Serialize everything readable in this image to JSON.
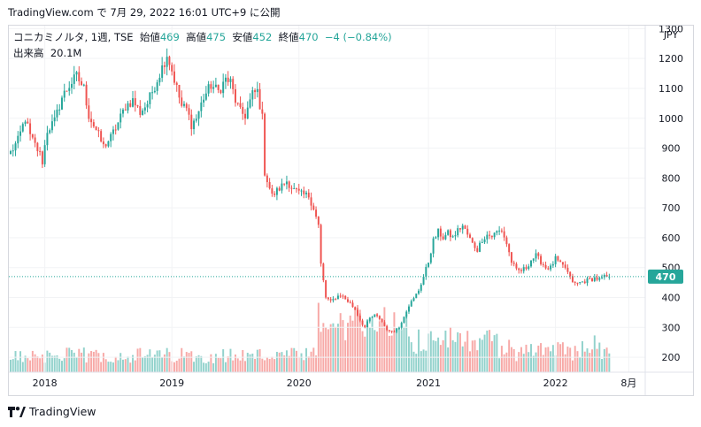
{
  "header": {
    "text": "TradingView.com で 7月 29, 2022 16:01 UTC+9 に公開"
  },
  "legend": {
    "symbol": "コニカミノルタ, 1週, TSE",
    "open_label": "始値",
    "open": "469",
    "high_label": "高値",
    "high": "475",
    "low_label": "安値",
    "low": "452",
    "close_label": "終値",
    "close": "470",
    "change": "−4 (−0.84%)",
    "volume_label": "出来高",
    "volume": "20.1M"
  },
  "footer": {
    "brand": "TradingView"
  },
  "colors": {
    "up": "#26a69a",
    "down": "#ef5350",
    "up_vol": "#92d2cc",
    "down_vol": "#f7a9a7",
    "price_line": "#26a69a"
  },
  "chart_data": {
    "type": "candlestick",
    "currency_label": "JPY",
    "y_ticks": [
      200,
      300,
      400,
      500,
      600,
      700,
      800,
      900,
      1000,
      1100,
      1200,
      1300
    ],
    "ylim": [
      150,
      1310
    ],
    "x_ticks": [
      {
        "label": "2018",
        "week": 14
      },
      {
        "label": "2019",
        "week": 66
      },
      {
        "label": "2020",
        "week": 118
      },
      {
        "label": "2021",
        "week": 171
      },
      {
        "label": "2022",
        "week": 223
      },
      {
        "label": "8月",
        "week": 253
      }
    ],
    "total_weeks": 259,
    "last_price": 470,
    "last_price_label": "470",
    "price_anchors": [
      [
        0,
        885
      ],
      [
        3,
        925
      ],
      [
        6,
        1000
      ],
      [
        8,
        940
      ],
      [
        10,
        910
      ],
      [
        12,
        880
      ],
      [
        13,
        855
      ],
      [
        15,
        960
      ],
      [
        18,
        990
      ],
      [
        21,
        1070
      ],
      [
        24,
        1110
      ],
      [
        27,
        1140
      ],
      [
        30,
        1100
      ],
      [
        32,
        1010
      ],
      [
        35,
        960
      ],
      [
        38,
        905
      ],
      [
        41,
        935
      ],
      [
        44,
        985
      ],
      [
        47,
        1040
      ],
      [
        50,
        1060
      ],
      [
        53,
        1020
      ],
      [
        56,
        1050
      ],
      [
        59,
        1110
      ],
      [
        62,
        1170
      ],
      [
        64,
        1215
      ],
      [
        66,
        1160
      ],
      [
        68,
        1100
      ],
      [
        70,
        1040
      ],
      [
        72,
        1030
      ],
      [
        74,
        980
      ],
      [
        76,
        1000
      ],
      [
        79,
        1070
      ],
      [
        82,
        1110
      ],
      [
        85,
        1090
      ],
      [
        88,
        1130
      ],
      [
        90,
        1120
      ],
      [
        92,
        1060
      ],
      [
        94,
        1020
      ],
      [
        96,
        1010
      ],
      [
        99,
        1080
      ],
      [
        101,
        1090
      ],
      [
        103,
        1000
      ],
      [
        104,
        820
      ],
      [
        107,
        740
      ],
      [
        110,
        765
      ],
      [
        113,
        790
      ],
      [
        116,
        760
      ],
      [
        119,
        745
      ],
      [
        122,
        740
      ],
      [
        124,
        700
      ],
      [
        126,
        640
      ],
      [
        127,
        510
      ],
      [
        129,
        400
      ],
      [
        131,
        385
      ],
      [
        133,
        400
      ],
      [
        135,
        410
      ],
      [
        137,
        395
      ],
      [
        139,
        380
      ],
      [
        141,
        360
      ],
      [
        143,
        325
      ],
      [
        145,
        300
      ],
      [
        147,
        330
      ],
      [
        149,
        340
      ],
      [
        151,
        330
      ],
      [
        153,
        305
      ],
      [
        155,
        285
      ],
      [
        157,
        290
      ],
      [
        159,
        300
      ],
      [
        161,
        340
      ],
      [
        163,
        375
      ],
      [
        165,
        395
      ],
      [
        167,
        425
      ],
      [
        169,
        470
      ],
      [
        171,
        520
      ],
      [
        173,
        590
      ],
      [
        175,
        620
      ],
      [
        177,
        600
      ],
      [
        179,
        615
      ],
      [
        181,
        600
      ],
      [
        183,
        625
      ],
      [
        185,
        640
      ],
      [
        187,
        610
      ],
      [
        189,
        580
      ],
      [
        191,
        560
      ],
      [
        193,
        595
      ],
      [
        195,
        610
      ],
      [
        197,
        605
      ],
      [
        199,
        620
      ],
      [
        201,
        625
      ],
      [
        203,
        580
      ],
      [
        205,
        520
      ],
      [
        207,
        490
      ],
      [
        209,
        490
      ],
      [
        211,
        500
      ],
      [
        213,
        525
      ],
      [
        215,
        540
      ],
      [
        217,
        520
      ],
      [
        219,
        500
      ],
      [
        221,
        500
      ],
      [
        223,
        530
      ],
      [
        225,
        510
      ],
      [
        227,
        500
      ],
      [
        229,
        465
      ],
      [
        231,
        445
      ],
      [
        233,
        450
      ],
      [
        235,
        455
      ],
      [
        237,
        460
      ],
      [
        239,
        465
      ],
      [
        241,
        460
      ],
      [
        243,
        468
      ],
      [
        245,
        470
      ]
    ],
    "volume_note": "weekly volume bars in lower panel; last bar 20.1M"
  }
}
